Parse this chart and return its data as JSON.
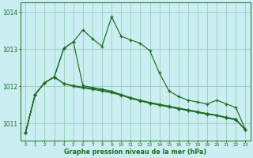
{
  "title": "Graphe pression niveau de la mer (hPa)",
  "background_color": "#cbeef3",
  "grid_color": "#99ccbb",
  "line_color": "#1e6b1e",
  "xlim": [
    -0.5,
    23.5
  ],
  "ylim": [
    1010.55,
    1014.25
  ],
  "yticks": [
    1011,
    1012,
    1013,
    1014
  ],
  "xticks": [
    0,
    1,
    2,
    3,
    4,
    5,
    6,
    7,
    8,
    9,
    10,
    11,
    12,
    13,
    14,
    15,
    16,
    17,
    18,
    19,
    20,
    21,
    22,
    23
  ],
  "line1": [
    1010.75,
    1011.78,
    1012.1,
    1012.25,
    1013.02,
    1013.2,
    1013.52,
    1013.28,
    1013.08,
    1013.87,
    1013.35,
    1013.25,
    1013.16,
    1012.96,
    1012.36,
    1011.88,
    1011.73,
    1011.63,
    1011.58,
    1011.53,
    1011.63,
    1011.53,
    1011.43,
    1010.83
  ],
  "line2": [
    1010.75,
    1011.78,
    1012.1,
    1012.25,
    1013.02,
    1013.2,
    1012.02,
    1011.97,
    1011.93,
    1011.87,
    1011.78,
    1011.68,
    1011.62,
    1011.55,
    1011.5,
    1011.45,
    1011.4,
    1011.35,
    1011.3,
    1011.25,
    1011.22,
    1011.15,
    1011.1,
    1010.83
  ],
  "line3": [
    1010.75,
    1011.78,
    1012.1,
    1012.25,
    1012.08,
    1012.02,
    1011.98,
    1011.94,
    1011.9,
    1011.85,
    1011.78,
    1011.7,
    1011.63,
    1011.57,
    1011.52,
    1011.47,
    1011.42,
    1011.37,
    1011.32,
    1011.27,
    1011.23,
    1011.17,
    1011.12,
    1010.83
  ],
  "line4": [
    1010.75,
    1011.78,
    1012.1,
    1012.25,
    1012.08,
    1012.0,
    1011.96,
    1011.92,
    1011.88,
    1011.83,
    1011.76,
    1011.68,
    1011.61,
    1011.55,
    1011.5,
    1011.45,
    1011.4,
    1011.36,
    1011.31,
    1011.26,
    1011.22,
    1011.16,
    1011.11,
    1010.83
  ]
}
